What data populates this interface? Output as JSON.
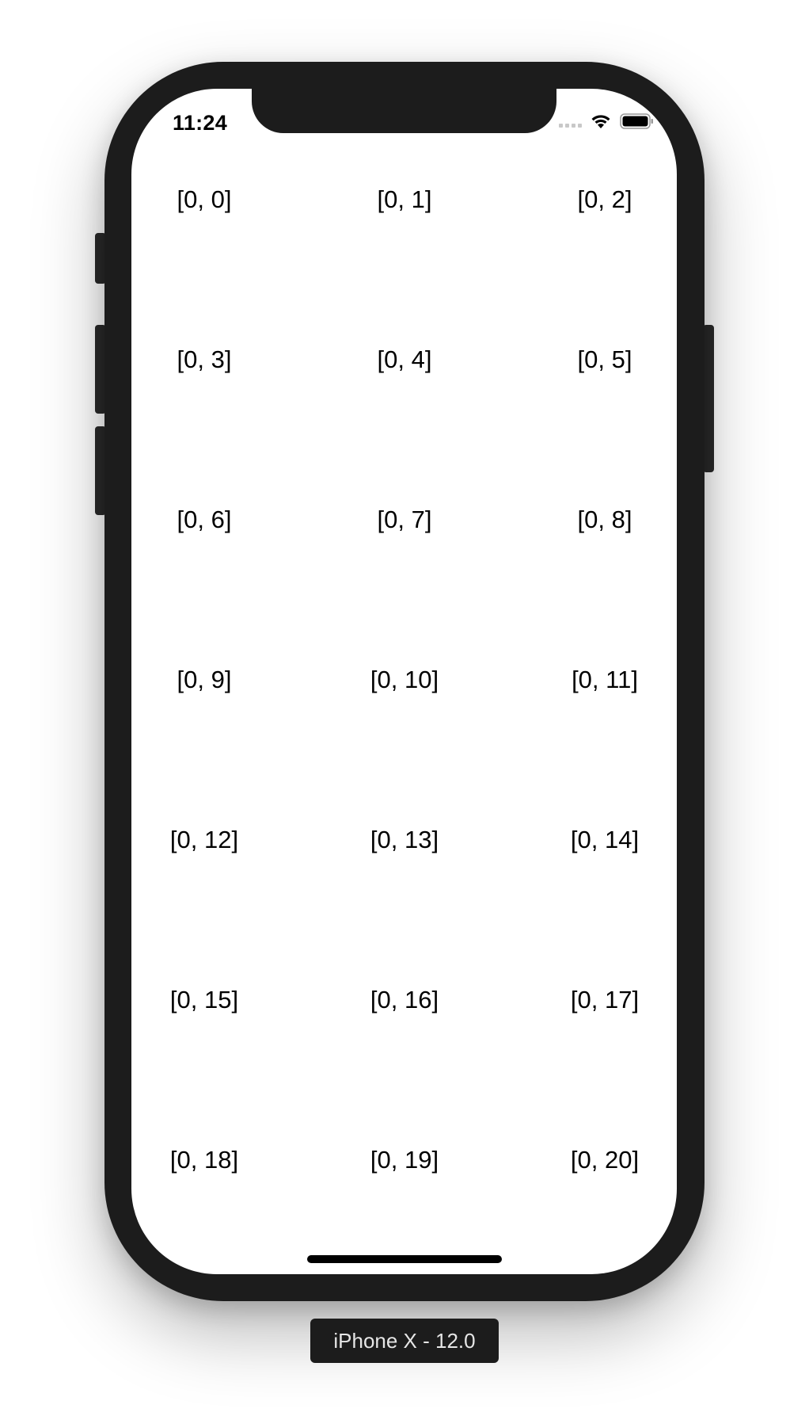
{
  "status_bar": {
    "time": "11:24",
    "signal_icon": "cellular-signal-icon",
    "wifi_icon": "wifi-icon",
    "battery_icon": "battery-icon"
  },
  "grid": {
    "columns": 3,
    "cells": [
      "[0, 0]",
      "[0, 1]",
      "[0, 2]",
      "[0, 3]",
      "[0, 4]",
      "[0, 5]",
      "[0, 6]",
      "[0, 7]",
      "[0, 8]",
      "[0, 9]",
      "[0, 10]",
      "[0, 11]",
      "[0, 12]",
      "[0, 13]",
      "[0, 14]",
      "[0, 15]",
      "[0, 16]",
      "[0, 17]",
      "[0, 18]",
      "[0, 19]",
      "[0, 20]"
    ]
  },
  "device_label": "iPhone X - 12.0",
  "colors": {
    "device_frame": "#1c1c1c",
    "screen_background": "#ffffff",
    "text": "#000000"
  }
}
